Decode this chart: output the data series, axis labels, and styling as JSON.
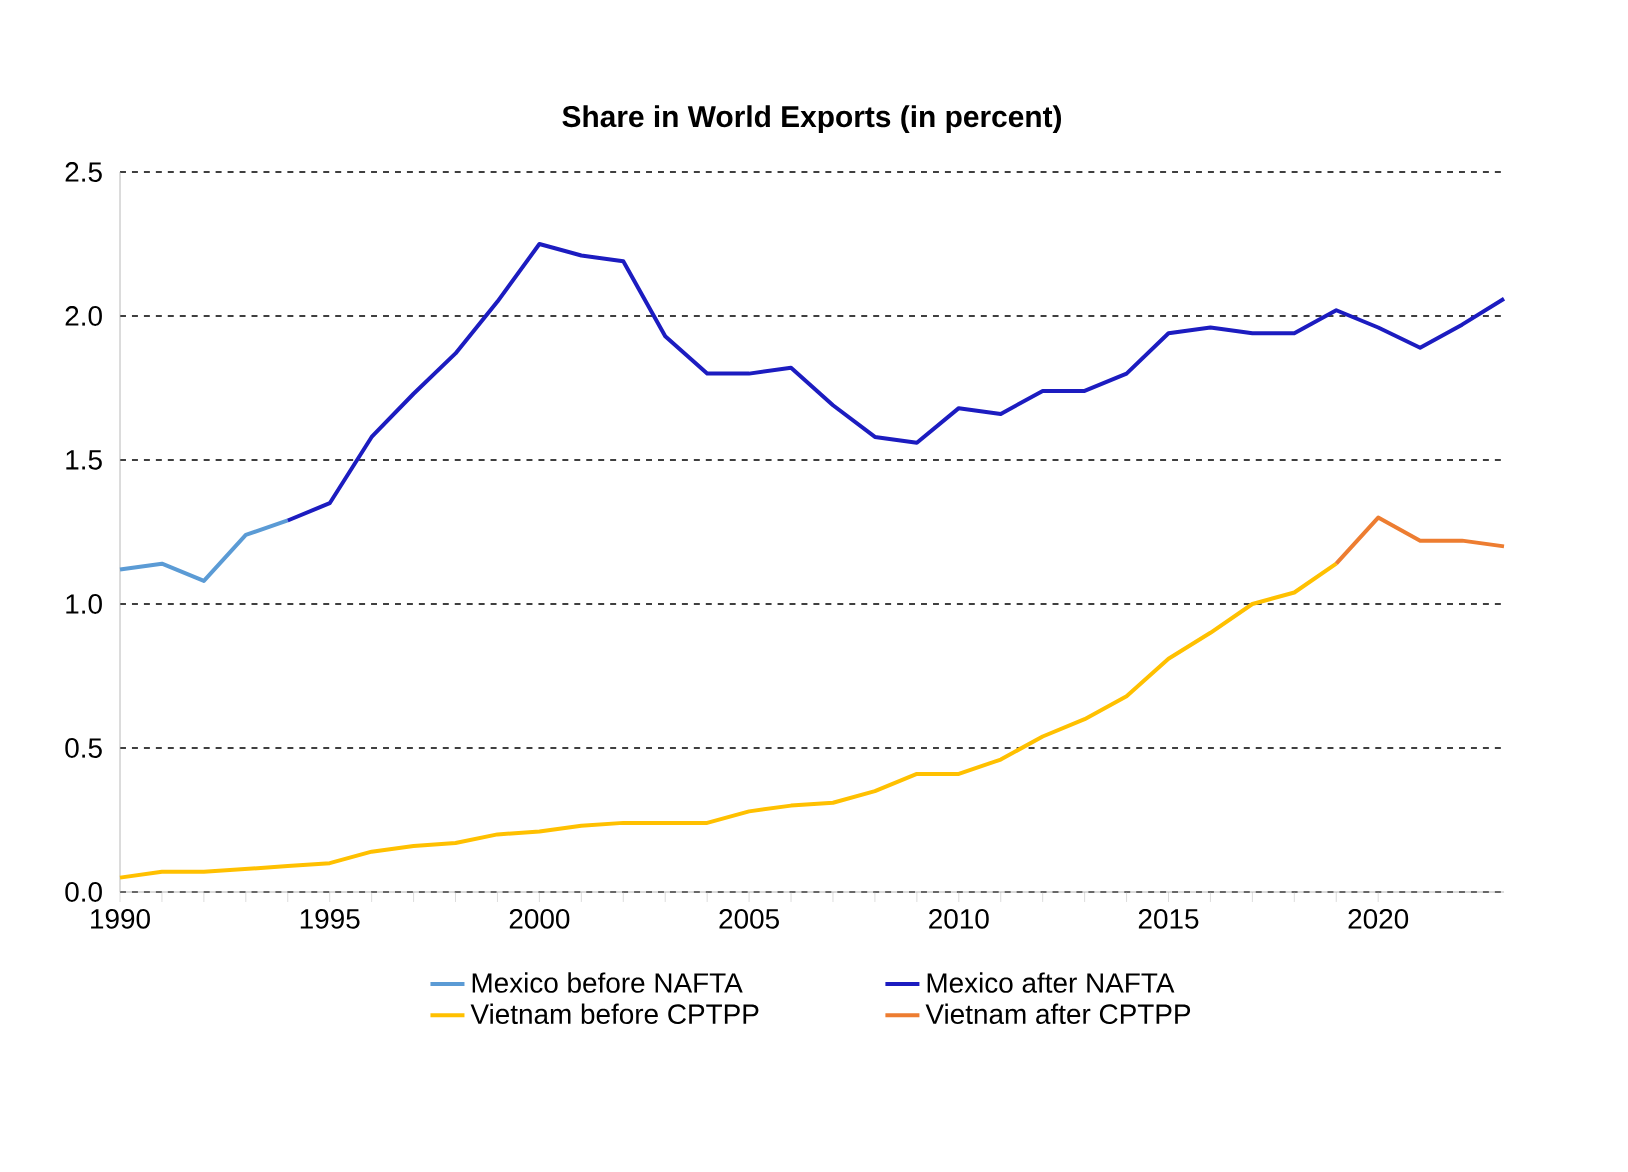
{
  "chart_data": {
    "type": "line",
    "title": "Share in World Exports (in percent)",
    "xlim": [
      1990,
      2023
    ],
    "xticks": [
      1990,
      1995,
      2000,
      2005,
      2010,
      2015,
      2020
    ],
    "ylim": [
      0,
      2.5
    ],
    "yticks": [
      {
        "value": 0,
        "label": "0.0"
      },
      {
        "value": 0.5,
        "label": "0.5"
      },
      {
        "value": 1,
        "label": "1.0"
      },
      {
        "value": 1.5,
        "label": "1.5"
      },
      {
        "value": 2,
        "label": "2.0"
      },
      {
        "value": 2.5,
        "label": "2.5"
      }
    ],
    "grid": "y",
    "legend": "bottom",
    "line_style": "solid",
    "marker": "none",
    "series": [
      {
        "name": "Mexico before NAFTA",
        "color": "#5b9bd5",
        "x": [
          1990,
          1991,
          1992,
          1993,
          1994
        ],
        "values": [
          1.12,
          1.14,
          1.08,
          1.24,
          1.29
        ]
      },
      {
        "name": "Mexico after NAFTA",
        "color": "#1c1cc0",
        "x": [
          1994,
          1995,
          1996,
          1997,
          1998,
          1999,
          2000,
          2001,
          2002,
          2003,
          2004,
          2005,
          2006,
          2007,
          2008,
          2009,
          2010,
          2011,
          2012,
          2013,
          2014,
          2015,
          2016,
          2017,
          2018,
          2019,
          2020,
          2021,
          2022,
          2023
        ],
        "values": [
          1.29,
          1.35,
          1.58,
          1.73,
          1.87,
          2.05,
          2.25,
          2.21,
          2.19,
          1.93,
          1.8,
          1.8,
          1.82,
          1.69,
          1.58,
          1.56,
          1.68,
          1.66,
          1.74,
          1.74,
          1.8,
          1.94,
          1.96,
          1.94,
          1.94,
          2.02,
          1.96,
          1.89,
          1.97,
          2.06
        ]
      },
      {
        "name": "Vietnam before CPTPP",
        "color": "#ffc000",
        "x": [
          1990,
          1991,
          1992,
          1993,
          1994,
          1995,
          1996,
          1997,
          1998,
          1999,
          2000,
          2001,
          2002,
          2003,
          2004,
          2005,
          2006,
          2007,
          2008,
          2009,
          2010,
          2011,
          2012,
          2013,
          2014,
          2015,
          2016,
          2017,
          2018,
          2019
        ],
        "values": [
          0.05,
          0.07,
          0.07,
          0.08,
          0.09,
          0.1,
          0.14,
          0.16,
          0.17,
          0.2,
          0.21,
          0.23,
          0.24,
          0.24,
          0.24,
          0.28,
          0.3,
          0.31,
          0.35,
          0.41,
          0.41,
          0.46,
          0.54,
          0.6,
          0.68,
          0.81,
          0.9,
          1.0,
          1.04,
          1.14
        ]
      },
      {
        "name": "Vietnam after CPTPP",
        "color": "#ed7d31",
        "x": [
          2019,
          2020,
          2021,
          2022,
          2023
        ],
        "values": [
          1.14,
          1.3,
          1.22,
          1.22,
          1.2
        ]
      }
    ]
  }
}
